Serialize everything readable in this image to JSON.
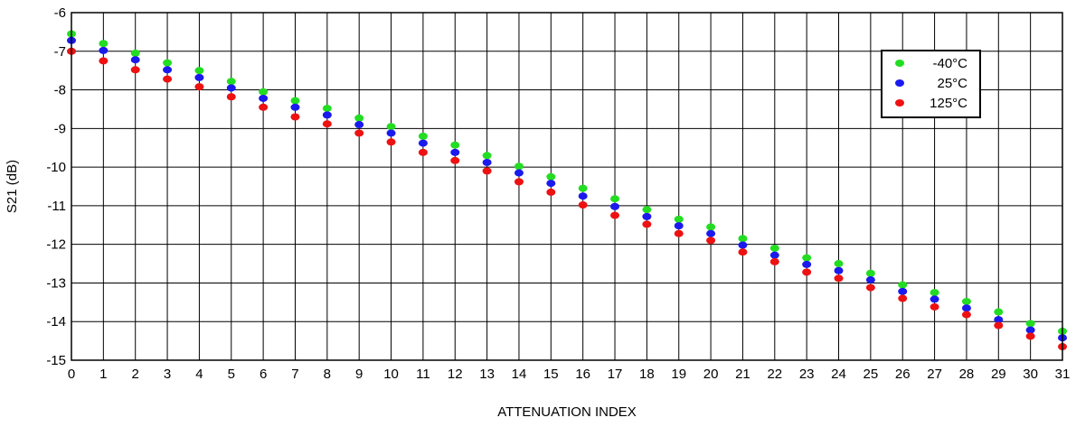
{
  "chart_data": {
    "type": "scatter",
    "xlabel": "ATTENUATION INDEX",
    "ylabel": "S21 (dB)",
    "xlim": [
      0,
      31
    ],
    "ylim": [
      -15,
      -6
    ],
    "xticks": [
      "0",
      "1",
      "2",
      "3",
      "4",
      "5",
      "6",
      "7",
      "8",
      "9",
      "10",
      "11",
      "12",
      "13",
      "14",
      "15",
      "16",
      "17",
      "18",
      "19",
      "20",
      "21",
      "22",
      "23",
      "24",
      "25",
      "26",
      "27",
      "28",
      "29",
      "30",
      "31"
    ],
    "yticks": [
      "-6",
      "-7",
      "-8",
      "-9",
      "-10",
      "-11",
      "-12",
      "-13",
      "-14",
      "-15"
    ],
    "grid": true,
    "legend_position": "top-right",
    "x": [
      0,
      1,
      2,
      3,
      4,
      5,
      6,
      7,
      8,
      9,
      10,
      11,
      12,
      13,
      14,
      15,
      16,
      17,
      18,
      19,
      20,
      21,
      22,
      23,
      24,
      25,
      26,
      27,
      28,
      29,
      30,
      31
    ],
    "series": [
      {
        "name": "-40°C",
        "color": "#22dd22",
        "values": [
          -6.55,
          -6.8,
          -7.05,
          -7.3,
          -7.5,
          -7.78,
          -8.05,
          -8.28,
          -8.48,
          -8.73,
          -8.95,
          -9.2,
          -9.43,
          -9.7,
          -9.98,
          -10.25,
          -10.55,
          -10.82,
          -11.1,
          -11.35,
          -11.55,
          -11.85,
          -12.1,
          -12.35,
          -12.5,
          -12.75,
          -13.05,
          -13.25,
          -13.48,
          -13.75,
          -14.05,
          -14.25
        ]
      },
      {
        "name": "25°C",
        "color": "#1a1aee",
        "values": [
          -6.72,
          -6.98,
          -7.22,
          -7.48,
          -7.68,
          -7.95,
          -8.22,
          -8.45,
          -8.65,
          -8.9,
          -9.12,
          -9.38,
          -9.62,
          -9.88,
          -10.15,
          -10.42,
          -10.75,
          -11.02,
          -11.28,
          -11.52,
          -11.72,
          -12.02,
          -12.28,
          -12.52,
          -12.68,
          -12.92,
          -13.22,
          -13.42,
          -13.65,
          -13.95,
          -14.22,
          -14.42
        ]
      },
      {
        "name": "125°C",
        "color": "#ee1111",
        "values": [
          -7.0,
          -7.25,
          -7.48,
          -7.72,
          -7.92,
          -8.18,
          -8.45,
          -8.7,
          -8.88,
          -9.12,
          -9.35,
          -9.62,
          -9.83,
          -10.1,
          -10.38,
          -10.65,
          -10.98,
          -11.25,
          -11.48,
          -11.72,
          -11.9,
          -12.2,
          -12.45,
          -12.72,
          -12.88,
          -13.12,
          -13.4,
          -13.62,
          -13.82,
          -14.1,
          -14.38,
          -14.65
        ]
      }
    ]
  }
}
